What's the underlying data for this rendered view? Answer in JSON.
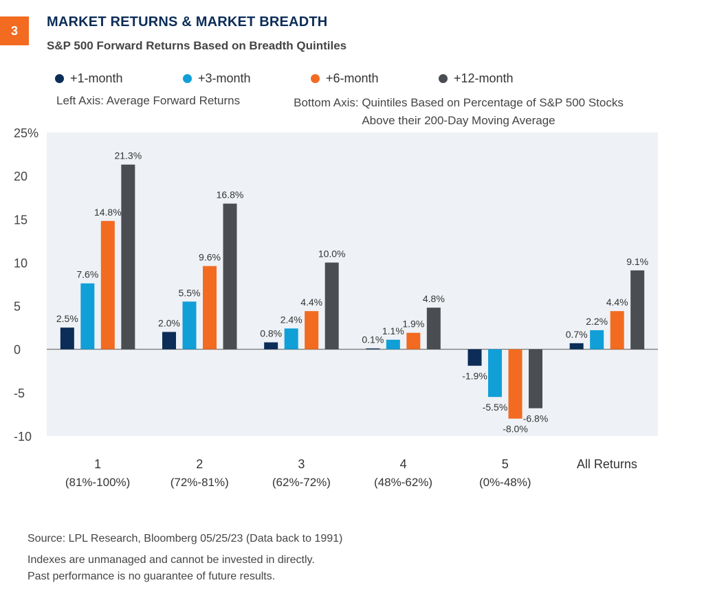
{
  "figure": {
    "badge": "3",
    "title": "MARKET RETURNS & MARKET BREADTH",
    "subtitle": "S&P 500 Forward Returns Based on Breadth Quintiles",
    "left_axis_note": "Left Axis: Average Forward Returns",
    "bottom_axis_note_line1": "Bottom Axis: Quintiles Based on Percentage of S&P 500 Stocks",
    "bottom_axis_note_line2": "Above their 200-Day Moving Average",
    "source": "Source: LPL Research, Bloomberg  05/25/23 (Data back to 1991)",
    "disclaimer_1": "Indexes are unmanaged and cannot be invested in directly.",
    "disclaimer_2": "Past performance is no guarantee of future results."
  },
  "colors": {
    "badge": "#f26b21",
    "title": "#0b2d57",
    "plot_background": "#eef1f5",
    "zero_line": "#555555"
  },
  "chart_data": {
    "type": "bar",
    "categories": [
      "1",
      "2",
      "3",
      "4",
      "5",
      "All Returns"
    ],
    "category_sublabels": [
      "(81%-100%)",
      "(72%-81%)",
      "(62%-72%)",
      "(48%-62%)",
      "(0%-48%)",
      ""
    ],
    "series": [
      {
        "name": "+1-month",
        "color": "#0b2d57",
        "values": [
          2.5,
          2.0,
          0.8,
          0.1,
          -1.9,
          0.7
        ],
        "labels": [
          "2.5%",
          "2.0%",
          "0.8%",
          "0.1%",
          "-1.9%",
          "0.7%"
        ]
      },
      {
        "name": "+3-month",
        "color": "#119fd8",
        "values": [
          7.6,
          5.5,
          2.4,
          1.1,
          -5.5,
          2.2
        ],
        "labels": [
          "7.6%",
          "5.5%",
          "2.4%",
          "1.1%",
          "-5.5%",
          "2.2%"
        ]
      },
      {
        "name": "+6-month",
        "color": "#f26b21",
        "values": [
          14.8,
          9.6,
          4.4,
          1.9,
          -8.0,
          4.4
        ],
        "labels": [
          "14.8%",
          "9.6%",
          "4.4%",
          "1.9%",
          "-8.0%",
          "4.4%"
        ]
      },
      {
        "name": "+12-month",
        "color": "#4a4d52",
        "values": [
          21.3,
          16.8,
          10.0,
          4.8,
          -6.8,
          9.1
        ],
        "labels": [
          "21.3%",
          "16.8%",
          "10.0%",
          "4.8%",
          "-6.8%",
          "9.1%"
        ]
      }
    ],
    "y_ticks": [
      25,
      20,
      15,
      10,
      5,
      0,
      -5,
      -10
    ],
    "y_tick_labels": [
      "25%",
      "20",
      "15",
      "10",
      "5",
      "0",
      "-5",
      "-10"
    ],
    "ylim": [
      -10,
      25
    ],
    "grid": false,
    "legend": "top"
  }
}
